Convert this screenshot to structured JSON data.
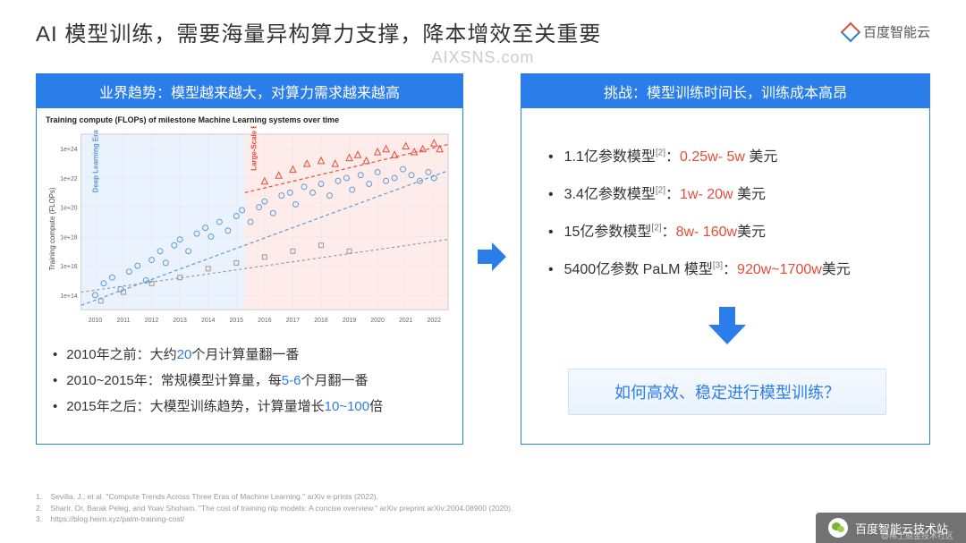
{
  "header": {
    "title": "AI 模型训练，需要海量异构算力支撑，降本增效至关重要",
    "logo_text": "百度智能云"
  },
  "watermark": "AIXSNS.com",
  "left_panel": {
    "header": "业界趋势：模型越来越大，对算力需求越来越高",
    "chart": {
      "type": "scatter",
      "title": "Training compute (FLOPs) of milestone Machine Learning systems over time",
      "x_axis": {
        "label_years": [
          2010,
          2011,
          2012,
          2013,
          2014,
          2015,
          2016,
          2017,
          2018,
          2019,
          2020,
          2021,
          2022
        ],
        "xlim": [
          2009.5,
          2022.5
        ]
      },
      "y_axis": {
        "label": "Training compute (FLOPs)",
        "scale": "log",
        "ylim_exp": [
          13,
          25
        ],
        "tick_exp": [
          14,
          16,
          18,
          20,
          22,
          24
        ]
      },
      "background_color": "#ffffff",
      "grid_color": "#e6e6e6",
      "era_bands": [
        {
          "name": "Deep Learning Era",
          "x_from": 2009.5,
          "x_to": 2015.3,
          "color": "#eaf2fe"
        },
        {
          "name": "Large-Scale Era",
          "x_from": 2015.3,
          "x_to": 2022.5,
          "color": "#fdecea"
        }
      ],
      "era_label_deep": "Deep Learning Era",
      "era_label_large": "Large-Scale Era",
      "trend_lines": [
        {
          "color": "#5b9bd5",
          "dash": "4 3",
          "points": [
            [
              2009.5,
              13.3
            ],
            [
              2022.5,
              22.5
            ]
          ]
        },
        {
          "color": "#e94b35",
          "dash": "4 3",
          "points": [
            [
              2015.3,
              21.0
            ],
            [
              2022.5,
              24.3
            ]
          ]
        },
        {
          "color": "#999999",
          "dash": "3 3",
          "points": [
            [
              2009.5,
              14.2
            ],
            [
              2022.5,
              17.8
            ]
          ]
        }
      ],
      "series": [
        {
          "marker": "circle",
          "color": "#5b9bd5",
          "size": 3,
          "points": [
            [
              2010.0,
              14.0
            ],
            [
              2010.3,
              14.8
            ],
            [
              2010.6,
              15.2
            ],
            [
              2010.9,
              14.4
            ],
            [
              2011.2,
              15.6
            ],
            [
              2011.5,
              16.0
            ],
            [
              2011.8,
              15.0
            ],
            [
              2012.0,
              16.4
            ],
            [
              2012.3,
              17.0
            ],
            [
              2012.5,
              16.2
            ],
            [
              2012.8,
              17.4
            ],
            [
              2013.0,
              17.8
            ],
            [
              2013.3,
              17.0
            ],
            [
              2013.6,
              18.2
            ],
            [
              2013.9,
              18.6
            ],
            [
              2014.1,
              18.0
            ],
            [
              2014.4,
              19.0
            ],
            [
              2014.7,
              18.4
            ],
            [
              2015.0,
              19.4
            ],
            [
              2015.2,
              19.8
            ],
            [
              2015.5,
              19.0
            ],
            [
              2015.8,
              20.0
            ],
            [
              2016.0,
              20.4
            ],
            [
              2016.3,
              19.6
            ],
            [
              2016.6,
              20.8
            ],
            [
              2016.9,
              21.0
            ],
            [
              2017.1,
              20.2
            ],
            [
              2017.4,
              21.4
            ],
            [
              2017.7,
              21.0
            ],
            [
              2018.0,
              21.6
            ],
            [
              2018.3,
              20.8
            ],
            [
              2018.6,
              21.8
            ],
            [
              2018.9,
              22.0
            ],
            [
              2019.1,
              21.2
            ],
            [
              2019.4,
              22.2
            ],
            [
              2019.7,
              21.6
            ],
            [
              2020.0,
              22.4
            ],
            [
              2020.3,
              21.8
            ],
            [
              2020.6,
              22.0
            ],
            [
              2020.9,
              22.6
            ],
            [
              2021.2,
              22.2
            ],
            [
              2021.5,
              21.8
            ],
            [
              2021.8,
              22.4
            ],
            [
              2022.0,
              22.0
            ]
          ]
        },
        {
          "marker": "triangle",
          "color": "#e94b35",
          "size": 3.5,
          "points": [
            [
              2016.0,
              21.8
            ],
            [
              2016.5,
              22.2
            ],
            [
              2017.0,
              22.6
            ],
            [
              2017.5,
              23.0
            ],
            [
              2018.0,
              23.2
            ],
            [
              2018.5,
              23.0
            ],
            [
              2019.0,
              23.4
            ],
            [
              2019.3,
              23.6
            ],
            [
              2019.6,
              23.2
            ],
            [
              2020.0,
              23.8
            ],
            [
              2020.3,
              24.0
            ],
            [
              2020.6,
              23.6
            ],
            [
              2021.0,
              24.2
            ],
            [
              2021.3,
              23.8
            ],
            [
              2021.6,
              24.0
            ],
            [
              2022.0,
              24.4
            ],
            [
              2022.2,
              24.0
            ]
          ]
        },
        {
          "marker": "square",
          "color": "#999999",
          "size": 2.5,
          "points": [
            [
              2010.2,
              13.6
            ],
            [
              2011.0,
              14.2
            ],
            [
              2012.0,
              14.8
            ],
            [
              2013.0,
              15.2
            ],
            [
              2014.0,
              15.8
            ],
            [
              2015.0,
              16.2
            ],
            [
              2016.0,
              16.6
            ],
            [
              2017.0,
              17.0
            ],
            [
              2018.0,
              17.4
            ],
            [
              2019.0,
              17.0
            ]
          ]
        }
      ]
    },
    "bullets": [
      {
        "prefix": "2010年之前：大约",
        "highlight": "20",
        "suffix": "个月计算量翻一番"
      },
      {
        "prefix": "2010~2015年：常规模型计算量，每",
        "highlight": "5-6",
        "suffix": "个月翻一番"
      },
      {
        "prefix": "2015年之后：大模型训练趋势，计算量增长",
        "highlight": "10~100",
        "suffix": "倍"
      }
    ]
  },
  "right_panel": {
    "header": "挑战：模型训练时间长，训练成本高昂",
    "bullets": [
      {
        "label": "1.1亿参数模型",
        "sup": "[2]",
        "sep": "：",
        "cost": "0.25w- 5w",
        "unit": " 美元"
      },
      {
        "label": "3.4亿参数模型",
        "sup": "[2]",
        "sep": "：",
        "cost": "1w- 20w",
        "unit": " 美元"
      },
      {
        "label": "15亿参数模型",
        "sup": "[2]",
        "sep": "：",
        "cost": "8w- 160w",
        "unit": "美元"
      },
      {
        "label": "5400亿参数 PaLM 模型",
        "sup": "[3]",
        "sep": "：",
        "cost": "920w~1700w",
        "unit": "美元"
      }
    ],
    "question": "如何高效、稳定进行模型训练？"
  },
  "arrows": {
    "fill": "#2b7de9"
  },
  "references": [
    "1.    Sevilla, J., et al. \"Compute Trends Across Three Eras of Machine Learning.\" arXiv e-prints (2022).",
    "2.    Sharir, Or, Barak Peleg, and Yoav Shoham. \"The cost of training nlp models: A concise overview.\" arXiv preprint arXiv:2004.08900 (2020).",
    "3.    https://blog.heim.xyz/palm-training-cost/"
  ],
  "footer": {
    "wechat_name": "百度智能云技术站",
    "community": "@稀土掘金技术社区"
  }
}
